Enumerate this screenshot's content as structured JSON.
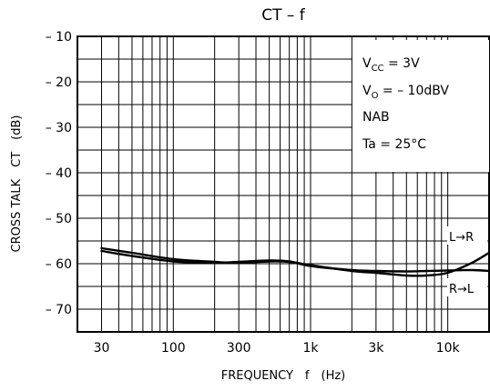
{
  "chart_data": {
    "type": "line",
    "title": "CT  –  f",
    "xlabel": "FREQUENCY　f　(Hz)",
    "ylabel": "CROSS TALK　CT　(dB)",
    "x_scale": "log",
    "xlim": [
      20,
      20000
    ],
    "ylim": [
      -75,
      -10
    ],
    "grid": true,
    "x_ticks": [
      {
        "value": 30,
        "label": "30"
      },
      {
        "value": 100,
        "label": "100"
      },
      {
        "value": 300,
        "label": "300"
      },
      {
        "value": 1000,
        "label": "1k"
      },
      {
        "value": 3000,
        "label": "3k"
      },
      {
        "value": 10000,
        "label": "10k"
      }
    ],
    "y_ticks": [
      {
        "value": -10,
        "label": "– 10"
      },
      {
        "value": -20,
        "label": "– 20"
      },
      {
        "value": -30,
        "label": "– 30"
      },
      {
        "value": -40,
        "label": "– 40"
      },
      {
        "value": -50,
        "label": "– 50"
      },
      {
        "value": -60,
        "label": "– 60"
      },
      {
        "value": -70,
        "label": "– 70"
      }
    ],
    "conditions": {
      "vcc": {
        "main": "V",
        "sub": "CC",
        "rest": " = 3V"
      },
      "vo": {
        "main": "V",
        "sub": "O",
        "rest": " = – 10dBV"
      },
      "nab": "NAB",
      "ta": "Ta = 25°C"
    },
    "series": [
      {
        "name": "L→R",
        "x": [
          30,
          50,
          100,
          200,
          300,
          500,
          700,
          1000,
          2000,
          3000,
          5000,
          7000,
          10000,
          15000,
          20000
        ],
        "y": [
          -56.6,
          -57.6,
          -59.0,
          -59.6,
          -59.8,
          -59.5,
          -59.6,
          -60.3,
          -61.6,
          -62.0,
          -62.6,
          -62.6,
          -62.0,
          -59.8,
          -57.6
        ]
      },
      {
        "name": "R→L",
        "x": [
          30,
          50,
          100,
          200,
          300,
          500,
          700,
          1000,
          2000,
          3000,
          5000,
          7000,
          10000,
          15000,
          20000
        ],
        "y": [
          -57.2,
          -58.3,
          -59.5,
          -59.8,
          -59.6,
          -59.3,
          -59.5,
          -60.5,
          -61.4,
          -61.6,
          -61.7,
          -61.6,
          -61.5,
          -61.4,
          -61.6
        ]
      }
    ]
  }
}
